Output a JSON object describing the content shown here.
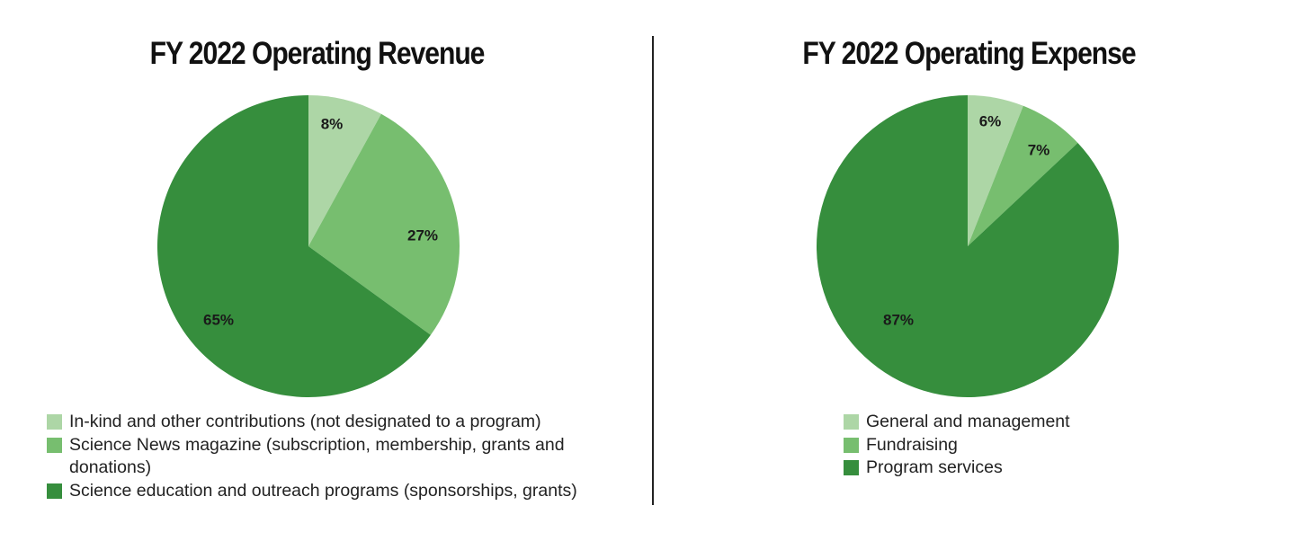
{
  "colors": {
    "light": "#add6a6",
    "medium": "#77be6f",
    "dark": "#368e3d"
  },
  "chart_data": [
    {
      "type": "pie",
      "title": "FY 2022 Operating Revenue",
      "slices": [
        {
          "label": "In-kind and other contributions (not designated to a program)",
          "value": 8,
          "value_label": "8%",
          "color": "#add6a6"
        },
        {
          "label": "Science News magazine (subscription, membership, grants and donations)",
          "value": 27,
          "value_label": "27%",
          "color": "#77be6f"
        },
        {
          "label": "Science education and outreach programs (sponsorships, grants)",
          "value": 65,
          "value_label": "65%",
          "color": "#368e3d"
        }
      ],
      "legend_placement": "bottom"
    },
    {
      "type": "pie",
      "title": "FY 2022 Operating Expense",
      "slices": [
        {
          "label": "General and management",
          "value": 6,
          "value_label": "6%",
          "color": "#add6a6"
        },
        {
          "label": "Fundraising",
          "value": 7,
          "value_label": "7%",
          "color": "#77be6f"
        },
        {
          "label": "Program services",
          "value": 87,
          "value_label": "87%",
          "color": "#368e3d"
        }
      ],
      "legend_placement": "bottom"
    }
  ]
}
